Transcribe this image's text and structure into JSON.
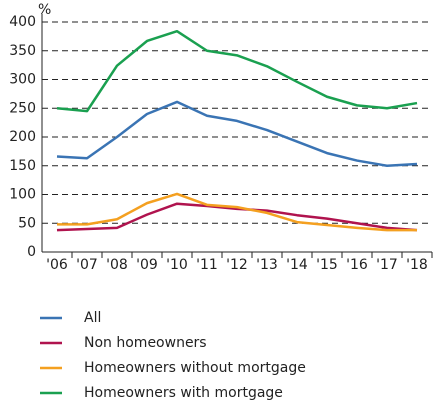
{
  "chart_data": {
    "type": "line",
    "y_label": "%",
    "categories": [
      "'06",
      "'07",
      "'08",
      "'09",
      "'10",
      "'11",
      "'12",
      "'13",
      "'14",
      "'15",
      "'16",
      "'17",
      "'18"
    ],
    "series": [
      {
        "name": "All",
        "color": "#3a74b4",
        "values": [
          166,
          163,
          200,
          240,
          261,
          237,
          228,
          212,
          192,
          172,
          159,
          150,
          153
        ]
      },
      {
        "name": "Non homeowners",
        "color": "#b0134e",
        "values": [
          38,
          40,
          42,
          65,
          84,
          80,
          75,
          72,
          64,
          58,
          50,
          42,
          38
        ]
      },
      {
        "name": "Homeowners without mortgage",
        "color": "#f4a020",
        "values": [
          48,
          48,
          57,
          85,
          101,
          82,
          78,
          68,
          52,
          47,
          42,
          38,
          38
        ]
      },
      {
        "name": "Homeowners with mortgage",
        "color": "#1aa050",
        "values": [
          250,
          245,
          324,
          367,
          384,
          350,
          342,
          323,
          296,
          270,
          255,
          250,
          259
        ]
      }
    ],
    "ylim": [
      0,
      400
    ],
    "yticks": [
      0,
      50,
      100,
      150,
      200,
      250,
      300,
      350,
      400
    ],
    "grid": true
  }
}
